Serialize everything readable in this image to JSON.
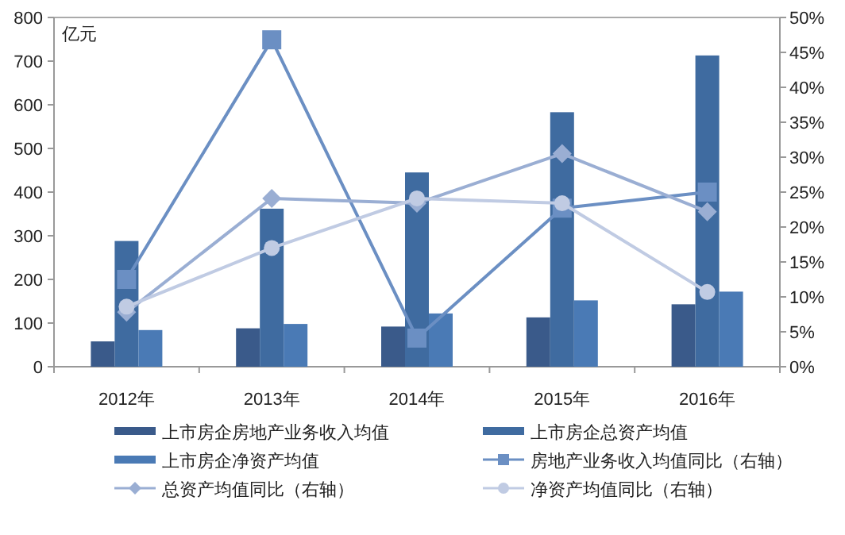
{
  "chart_data": {
    "type": "bar",
    "ylabel": "亿元",
    "categories": [
      "2012年",
      "2013年",
      "2014年",
      "2015年",
      "2016年"
    ],
    "ylim": [
      0,
      800
    ],
    "yticks": [
      0,
      100,
      200,
      300,
      400,
      500,
      600,
      700,
      800
    ],
    "y2lim": [
      0,
      50
    ],
    "y2ticks": [
      {
        "value": 0,
        "label": "0%"
      },
      {
        "value": 5,
        "label": "5%"
      },
      {
        "value": 10,
        "label": "10%"
      },
      {
        "value": 15,
        "label": "15%"
      },
      {
        "value": 20,
        "label": "20%"
      },
      {
        "value": 25,
        "label": "25%"
      },
      {
        "value": 30,
        "label": "30%"
      },
      {
        "value": 35,
        "label": "35%"
      },
      {
        "value": 40,
        "label": "40%"
      },
      {
        "value": 45,
        "label": "45%"
      },
      {
        "value": 50,
        "label": "50%"
      }
    ],
    "grid": false,
    "legend": "bottom",
    "series": [
      {
        "name": "上市房企房地产业务收入均值",
        "color": "#3a5a8a",
        "values": [
          58,
          88,
          92,
          113,
          143
        ]
      },
      {
        "name": "上市房企总资产均值",
        "color": "#3f6ba0",
        "values": [
          288,
          362,
          445,
          583,
          713
        ]
      },
      {
        "name": "上市房企净资产均值",
        "color": "#4a7ab5",
        "values": [
          84,
          98,
          122,
          152,
          172
        ]
      },
      {
        "name": "房地产业务收入均值同比（右轴）",
        "type": "line",
        "axis": "y2",
        "marker": "square",
        "color": "#6b8fc3",
        "values": [
          12.5,
          46.8,
          4.1,
          22.7,
          25.0
        ]
      },
      {
        "name": "总资产均值同比（右轴）",
        "type": "line",
        "axis": "y2",
        "marker": "diamond",
        "color": "#9aaed3",
        "values": [
          7.8,
          24.1,
          23.4,
          30.5,
          22.2
        ]
      },
      {
        "name": "净资产均值同比（右轴）",
        "type": "line",
        "axis": "y2",
        "marker": "circle",
        "color": "#c0cbe3",
        "values": [
          8.6,
          17.0,
          24.1,
          23.4,
          10.7
        ]
      }
    ]
  }
}
